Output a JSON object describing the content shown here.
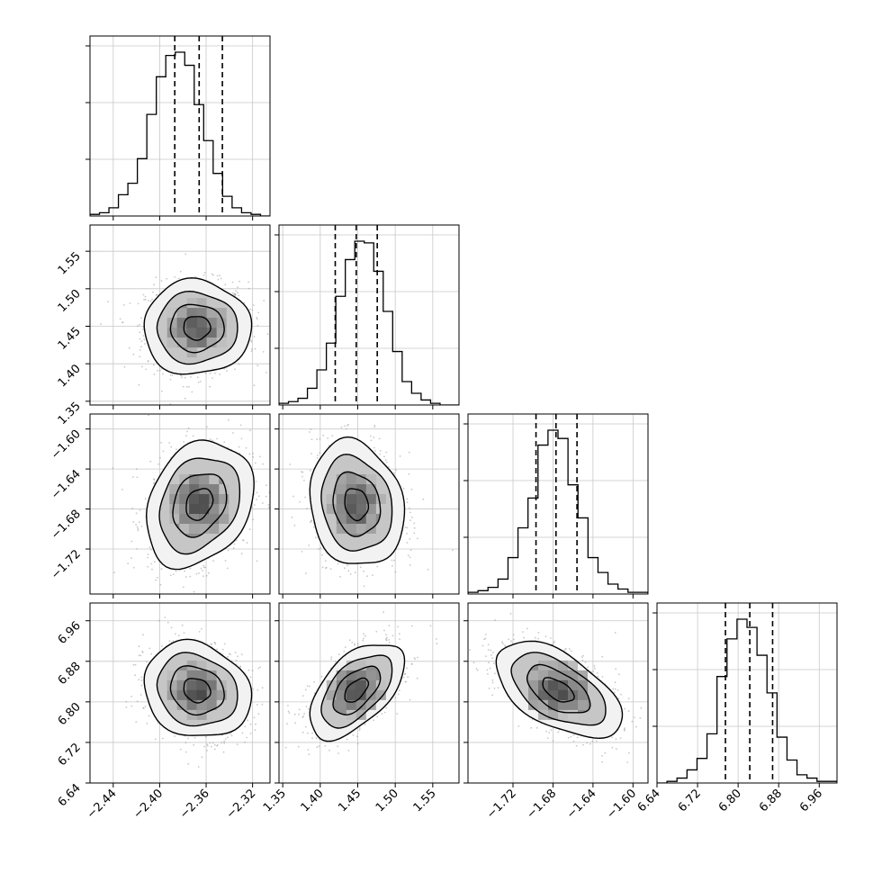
{
  "chart_data": {
    "type": "corner",
    "description": "",
    "parameters": [
      {
        "ticks": [
          -2.44,
          -2.4,
          -2.36,
          -2.32
        ],
        "tick_labels": [
          "−2.44",
          "−2.40",
          "−2.36",
          "−2.32"
        ],
        "range": [
          -2.46,
          -2.305
        ],
        "quantiles": [
          -2.387,
          -2.366,
          -2.346
        ],
        "hist": [
          1,
          2,
          5,
          13,
          20,
          35,
          62,
          85,
          98,
          100,
          92,
          68,
          46,
          26,
          12,
          5,
          2,
          1,
          0
        ]
      },
      {
        "ticks": [
          1.35,
          1.4,
          1.45,
          1.5,
          1.55
        ],
        "tick_labels": [
          "1.35",
          "1.40",
          "1.45",
          "1.50",
          "1.55"
        ],
        "range": [
          1.345,
          1.585
        ],
        "quantiles": [
          1.42,
          1.448,
          1.476
        ],
        "hist": [
          1,
          2,
          4,
          10,
          21,
          37,
          65,
          87,
          98,
          97,
          80,
          56,
          32,
          14,
          7,
          3,
          1,
          0,
          0
        ]
      },
      {
        "ticks": [
          -1.72,
          -1.68,
          -1.64,
          -1.6
        ],
        "tick_labels": [
          "−1.72",
          "−1.68",
          "−1.64",
          "−1.60"
        ],
        "range": [
          -1.765,
          -1.585
        ],
        "quantiles": [
          -1.697,
          -1.677,
          -1.656
        ],
        "hist": [
          1,
          2,
          4,
          9,
          22,
          40,
          58,
          90,
          99,
          94,
          66,
          46,
          22,
          13,
          6,
          3,
          1,
          1
        ]
      },
      {
        "ticks": [
          6.64,
          6.72,
          6.8,
          6.88,
          6.96
        ],
        "tick_labels": [
          "6.64",
          "6.72",
          "6.80",
          "6.88",
          "6.96"
        ],
        "range": [
          6.64,
          6.995
        ],
        "quantiles": [
          6.775,
          6.823,
          6.868
        ],
        "hist": [
          0,
          1,
          3,
          8,
          15,
          30,
          65,
          88,
          100,
          95,
          78,
          55,
          28,
          14,
          5,
          3,
          1,
          1
        ]
      }
    ],
    "pairs": [
      {
        "row": 1,
        "col": 0,
        "center": [
          -2.368,
          1.448
        ],
        "sd": [
          0.022,
          0.03
        ],
        "corr": 0.0
      },
      {
        "row": 2,
        "col": 0,
        "center": [
          -2.366,
          -1.675
        ],
        "sd": [
          0.022,
          0.03
        ],
        "corr": 0.25
      },
      {
        "row": 2,
        "col": 1,
        "center": [
          1.448,
          -1.675
        ],
        "sd": [
          0.03,
          0.03
        ],
        "corr": -0.15
      },
      {
        "row": 3,
        "col": 0,
        "center": [
          -2.368,
          6.823
        ],
        "sd": [
          0.022,
          0.045
        ],
        "corr": -0.15
      },
      {
        "row": 3,
        "col": 1,
        "center": [
          1.448,
          6.823
        ],
        "sd": [
          0.03,
          0.045
        ],
        "corr": 0.55
      },
      {
        "row": 3,
        "col": 2,
        "center": [
          -1.675,
          6.823
        ],
        "sd": [
          0.03,
          0.045
        ],
        "corr": -0.55
      }
    ],
    "contour_levels_sigma": [
      0.5,
      1.0,
      1.5,
      2.0
    ],
    "grid": true,
    "quantile_style": "dashed"
  }
}
